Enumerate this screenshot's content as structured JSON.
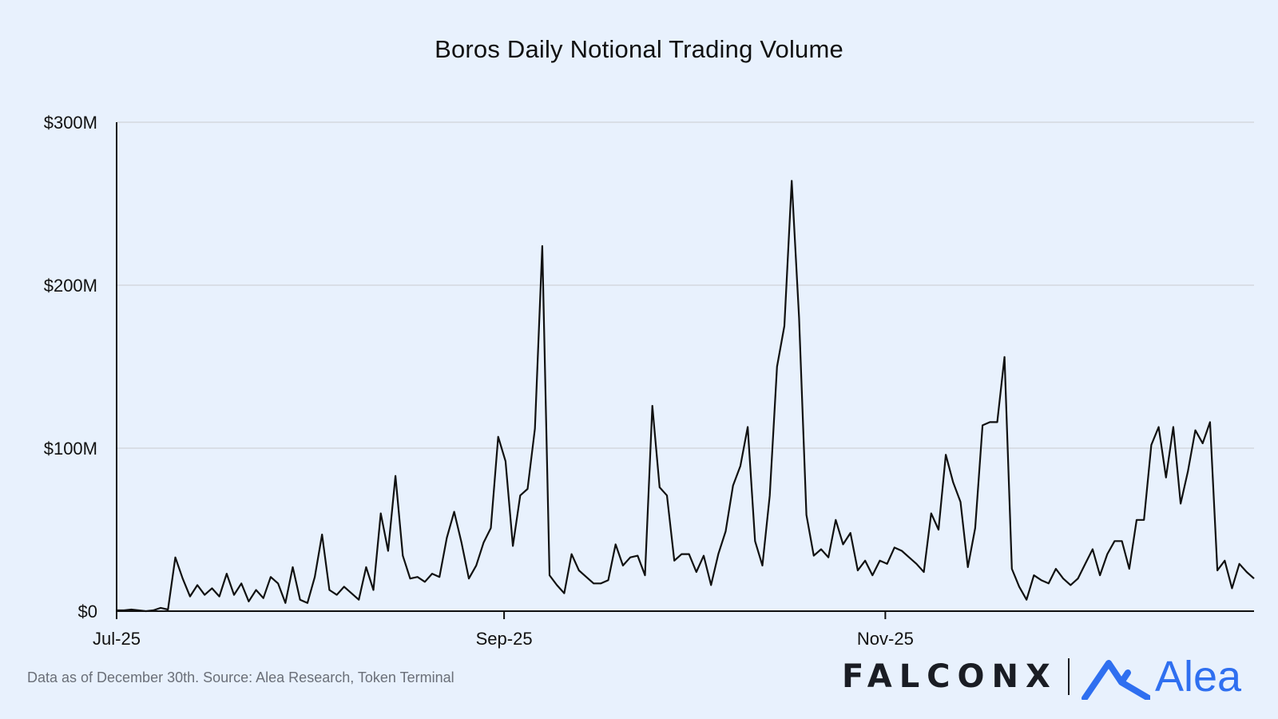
{
  "chart_data": {
    "type": "line",
    "title": "Boros Daily Notional Trading Volume",
    "xlabel": "",
    "ylabel": "",
    "ylim": [
      0,
      300
    ],
    "y_unit": "$M",
    "y_ticks": [
      0,
      100,
      200,
      300
    ],
    "y_tick_labels": [
      "$0",
      "$100M",
      "$200M",
      "$300M"
    ],
    "x_ticks": [
      "2025-07-01",
      "2025-09-01",
      "2025-11-01"
    ],
    "x_tick_labels": [
      "Jul-25",
      "Sep-25",
      "Nov-25"
    ],
    "x_start": "2025-07-01",
    "x_end": "2025-12-30",
    "grid": true,
    "series": [
      {
        "values": [
          0.5,
          0.5,
          1,
          0.5,
          0,
          0.5,
          2,
          1,
          33,
          20,
          9,
          16,
          10,
          14,
          9,
          23,
          10,
          17,
          6,
          13,
          8,
          21,
          17,
          5,
          27,
          7,
          5,
          21,
          47,
          13,
          10,
          15,
          11,
          7,
          27,
          13,
          60,
          37,
          83,
          34,
          20,
          21,
          18,
          23,
          21,
          45,
          61,
          42,
          20,
          28,
          42,
          51,
          107,
          92,
          40,
          71,
          75,
          112,
          224,
          22,
          16,
          11,
          35,
          25,
          21,
          17,
          17,
          19,
          41,
          28,
          33,
          34,
          22,
          126,
          76,
          71,
          31,
          35,
          35,
          24,
          34,
          16,
          35,
          49,
          77,
          89,
          113,
          43,
          28,
          71,
          150,
          175,
          264,
          180,
          59,
          34,
          38,
          33,
          56,
          41,
          48,
          25,
          31,
          22,
          31,
          29,
          39,
          37,
          33,
          29,
          24,
          60,
          50,
          96,
          79,
          67,
          27,
          51,
          114,
          116,
          116,
          156,
          26,
          15,
          7,
          22,
          19,
          17,
          26,
          20,
          16,
          20,
          29,
          38,
          22,
          35,
          43,
          43,
          26,
          56,
          56,
          102,
          113,
          82,
          113,
          66,
          86,
          111,
          103,
          116,
          25,
          31,
          14,
          29,
          24,
          20
        ]
      }
    ]
  },
  "footnote": "Data as of December 30th. Source: Alea Research, Token Terminal",
  "logos": {
    "falconx": "FALCONX",
    "alea": "Alea",
    "falconx_color": "#1a1d24",
    "alea_color": "#2f6ff0"
  },
  "colors": {
    "background": "#e8f1fd",
    "line": "#111111",
    "grid": "#d9dee6"
  }
}
